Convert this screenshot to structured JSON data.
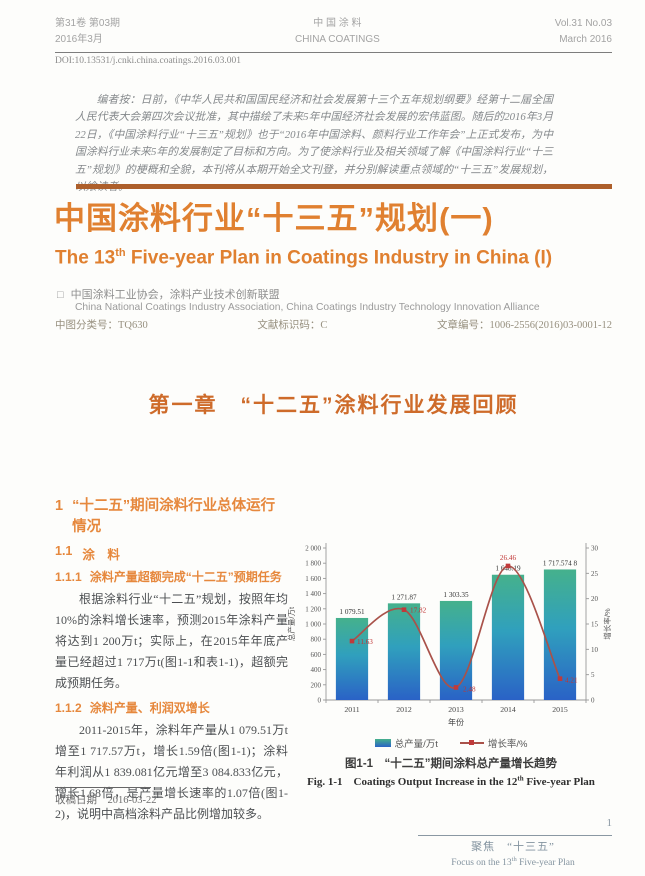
{
  "masthead": {
    "issue_cn_line1": "第31卷 第03期",
    "issue_cn_line2": "2016年3月",
    "journal_cn": "中 国 涂 料",
    "journal_en": "CHINA COATINGS",
    "issue_en_line1": "Vol.31 No.03",
    "issue_en_line2": "March 2016",
    "doi": "DOI:10.13531/j.cnki.china.coatings.2016.03.001"
  },
  "abstract": "编者按：日前，《中华人民共和国国民经济和社会发展第十三个五年规划纲要》经第十二届全国人民代表大会第四次会议批准，其中描绘了未来5年中国经济社会发展的宏伟蓝图。随后的2016年3月22日，《中国涂料行业“十三五”规划》也于“2016年中国涂料、颜料行业工作年会”上正式发布，为中国涂料行业未来5年的发展制定了目标和方向。为了使涂料行业及相关领域了解《中国涂料行业“十三五”规划》的梗概和全貌，本刊将从本期开始全文刊登，并分别解读重点领域的“十三五”发展规划，以飨读者。",
  "title": {
    "cn": "中国涂料行业“十三五”规划(一)",
    "en_pre": "The 13",
    "en_sup": "th",
    "en_post": " Five-year Plan in Coatings Industry in China (I)"
  },
  "authors": {
    "marker": "□",
    "cn": "中国涂料工业协会，涂料产业技术创新联盟",
    "en": "China National Coatings Industry Association, China Coatings Industry Technology Innovation Alliance"
  },
  "meta": {
    "clc": "中图分类号：TQ630",
    "doc_code": "文献标识码：C",
    "article_id": "文章编号：1006-2556(2016)03-0001-12"
  },
  "chapter_title": "第一章　“十二五”涂料行业发展回顾",
  "sections": {
    "h1_num": "1",
    "h1_text": "“十二五”期间涂料行业总体运行情况",
    "h2_num": "1.1",
    "h2_text": "涂　料",
    "h3a_num": "1.1.1",
    "h3a_text": "涂料产量超额完成“十二五”预期任务",
    "p1": "根据涂料行业“十二五”规划，按照年均10%的涂料增长速率，预测2015年涂料产量将达到1 200万t；实际上，在2015年年底产量已经超过1 717万t(图1-1和表1-1)，超额完成预期任务。",
    "h3b_num": "1.1.2",
    "h3b_text": "涂料产量、利润双增长",
    "p2": "2011-2015年，涂料年产量从1 079.51万t增至1 717.57万t，增长1.59倍(图1-1)；涂料年利润从1 839.081亿元增至3 084.833亿元，增长1.68倍，是产量增长速率的1.07倍(图1-2)，说明中高档涂料产品比例增加较多。",
    "received": "收稿日期　2016-03-22"
  },
  "figure": {
    "legend_bar": "总产量/万t",
    "legend_line": "增长率/%",
    "caption_cn": "图1-1　“十二五”期间涂料总产量增长趋势",
    "caption_en_pre": "Fig. 1-1　Coatings Output Increase in the 12",
    "caption_en_sup": "th",
    "caption_en_post": " Five-year Plan"
  },
  "chart_data": {
    "type": "bar+line",
    "categories": [
      "2011",
      "2012",
      "2013",
      "2014",
      "2015"
    ],
    "series": [
      {
        "name": "总产量/万t",
        "type": "bar",
        "axis": "left",
        "values": [
          1079.51,
          1271.87,
          1303.35,
          1648.19,
          1717.5748
        ],
        "labels": [
          "1 079.51",
          "1 271.87",
          "1 303.35",
          "1 648.19",
          "1 717.574 8"
        ]
      },
      {
        "name": "增长率/%",
        "type": "line",
        "axis": "right",
        "values": [
          11.63,
          17.82,
          2.48,
          26.46,
          4.21
        ],
        "labels": [
          "11.63",
          "17.82",
          "2.48",
          "26.46",
          "4.21"
        ]
      }
    ],
    "xlabel": "年份",
    "left_axis": {
      "label": "总产量/万t",
      "min": 0,
      "max": 2000,
      "step": 200,
      "tick_labels": [
        "0",
        "200",
        "400",
        "600",
        "800",
        "1 000",
        "1 200",
        "1 400",
        "1 600",
        "1 800",
        "2 000"
      ]
    },
    "right_axis": {
      "label": "增长率/%",
      "min": 0,
      "max": 30,
      "step": 5,
      "tick_labels": [
        "0",
        "5",
        "10",
        "15",
        "20",
        "25",
        "30"
      ]
    },
    "grid": false,
    "legend_position": "bottom",
    "colors": {
      "bar_top": "#45b18c",
      "bar_mid": "#30a0bd",
      "bar_bottom": "#2a62c6",
      "line": "#a9524a",
      "marker": "#c03a3a",
      "bar_label": "#333333",
      "line_label": "#c03535",
      "axis": "#999999"
    }
  },
  "footer": {
    "page_number": "1",
    "focus_cn": "聚焦　“十三五”",
    "focus_en_pre": "Focus on the 13",
    "focus_en_sup": "th",
    "focus_en_post": " Five-year Plan"
  }
}
